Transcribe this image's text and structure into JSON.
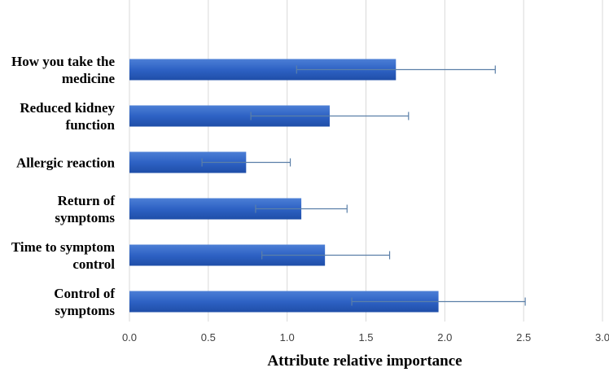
{
  "chart_data": {
    "type": "bar",
    "orientation": "horizontal",
    "title": "",
    "xlabel": "Attribute relative importance",
    "ylabel": "",
    "xlim": [
      0,
      3
    ],
    "xticks": [
      "0.0",
      "0.5",
      "1.0",
      "1.5",
      "2.0",
      "2.5",
      "3.0"
    ],
    "grid": "vertical",
    "legend": "none",
    "bar_color": "#2E62C4",
    "error_color": "#5B7FA8",
    "grid_color": "#D9D9D9",
    "categories": [
      {
        "lines": [
          "How you take the",
          "medicine"
        ],
        "value": 1.69,
        "err_low": 1.06,
        "err_high": 2.32
      },
      {
        "lines": [
          "Reduced kidney",
          "function"
        ],
        "value": 1.27,
        "err_low": 0.77,
        "err_high": 1.77
      },
      {
        "lines": [
          "Allergic reaction"
        ],
        "value": 0.74,
        "err_low": 0.46,
        "err_high": 1.02
      },
      {
        "lines": [
          "Return of",
          "symptoms"
        ],
        "value": 1.09,
        "err_low": 0.8,
        "err_high": 1.38
      },
      {
        "lines": [
          "Time to symptom",
          "control"
        ],
        "value": 1.24,
        "err_low": 0.84,
        "err_high": 1.65
      },
      {
        "lines": [
          "Control of",
          "symptoms"
        ],
        "value": 1.96,
        "err_low": 1.41,
        "err_high": 2.51
      }
    ]
  }
}
